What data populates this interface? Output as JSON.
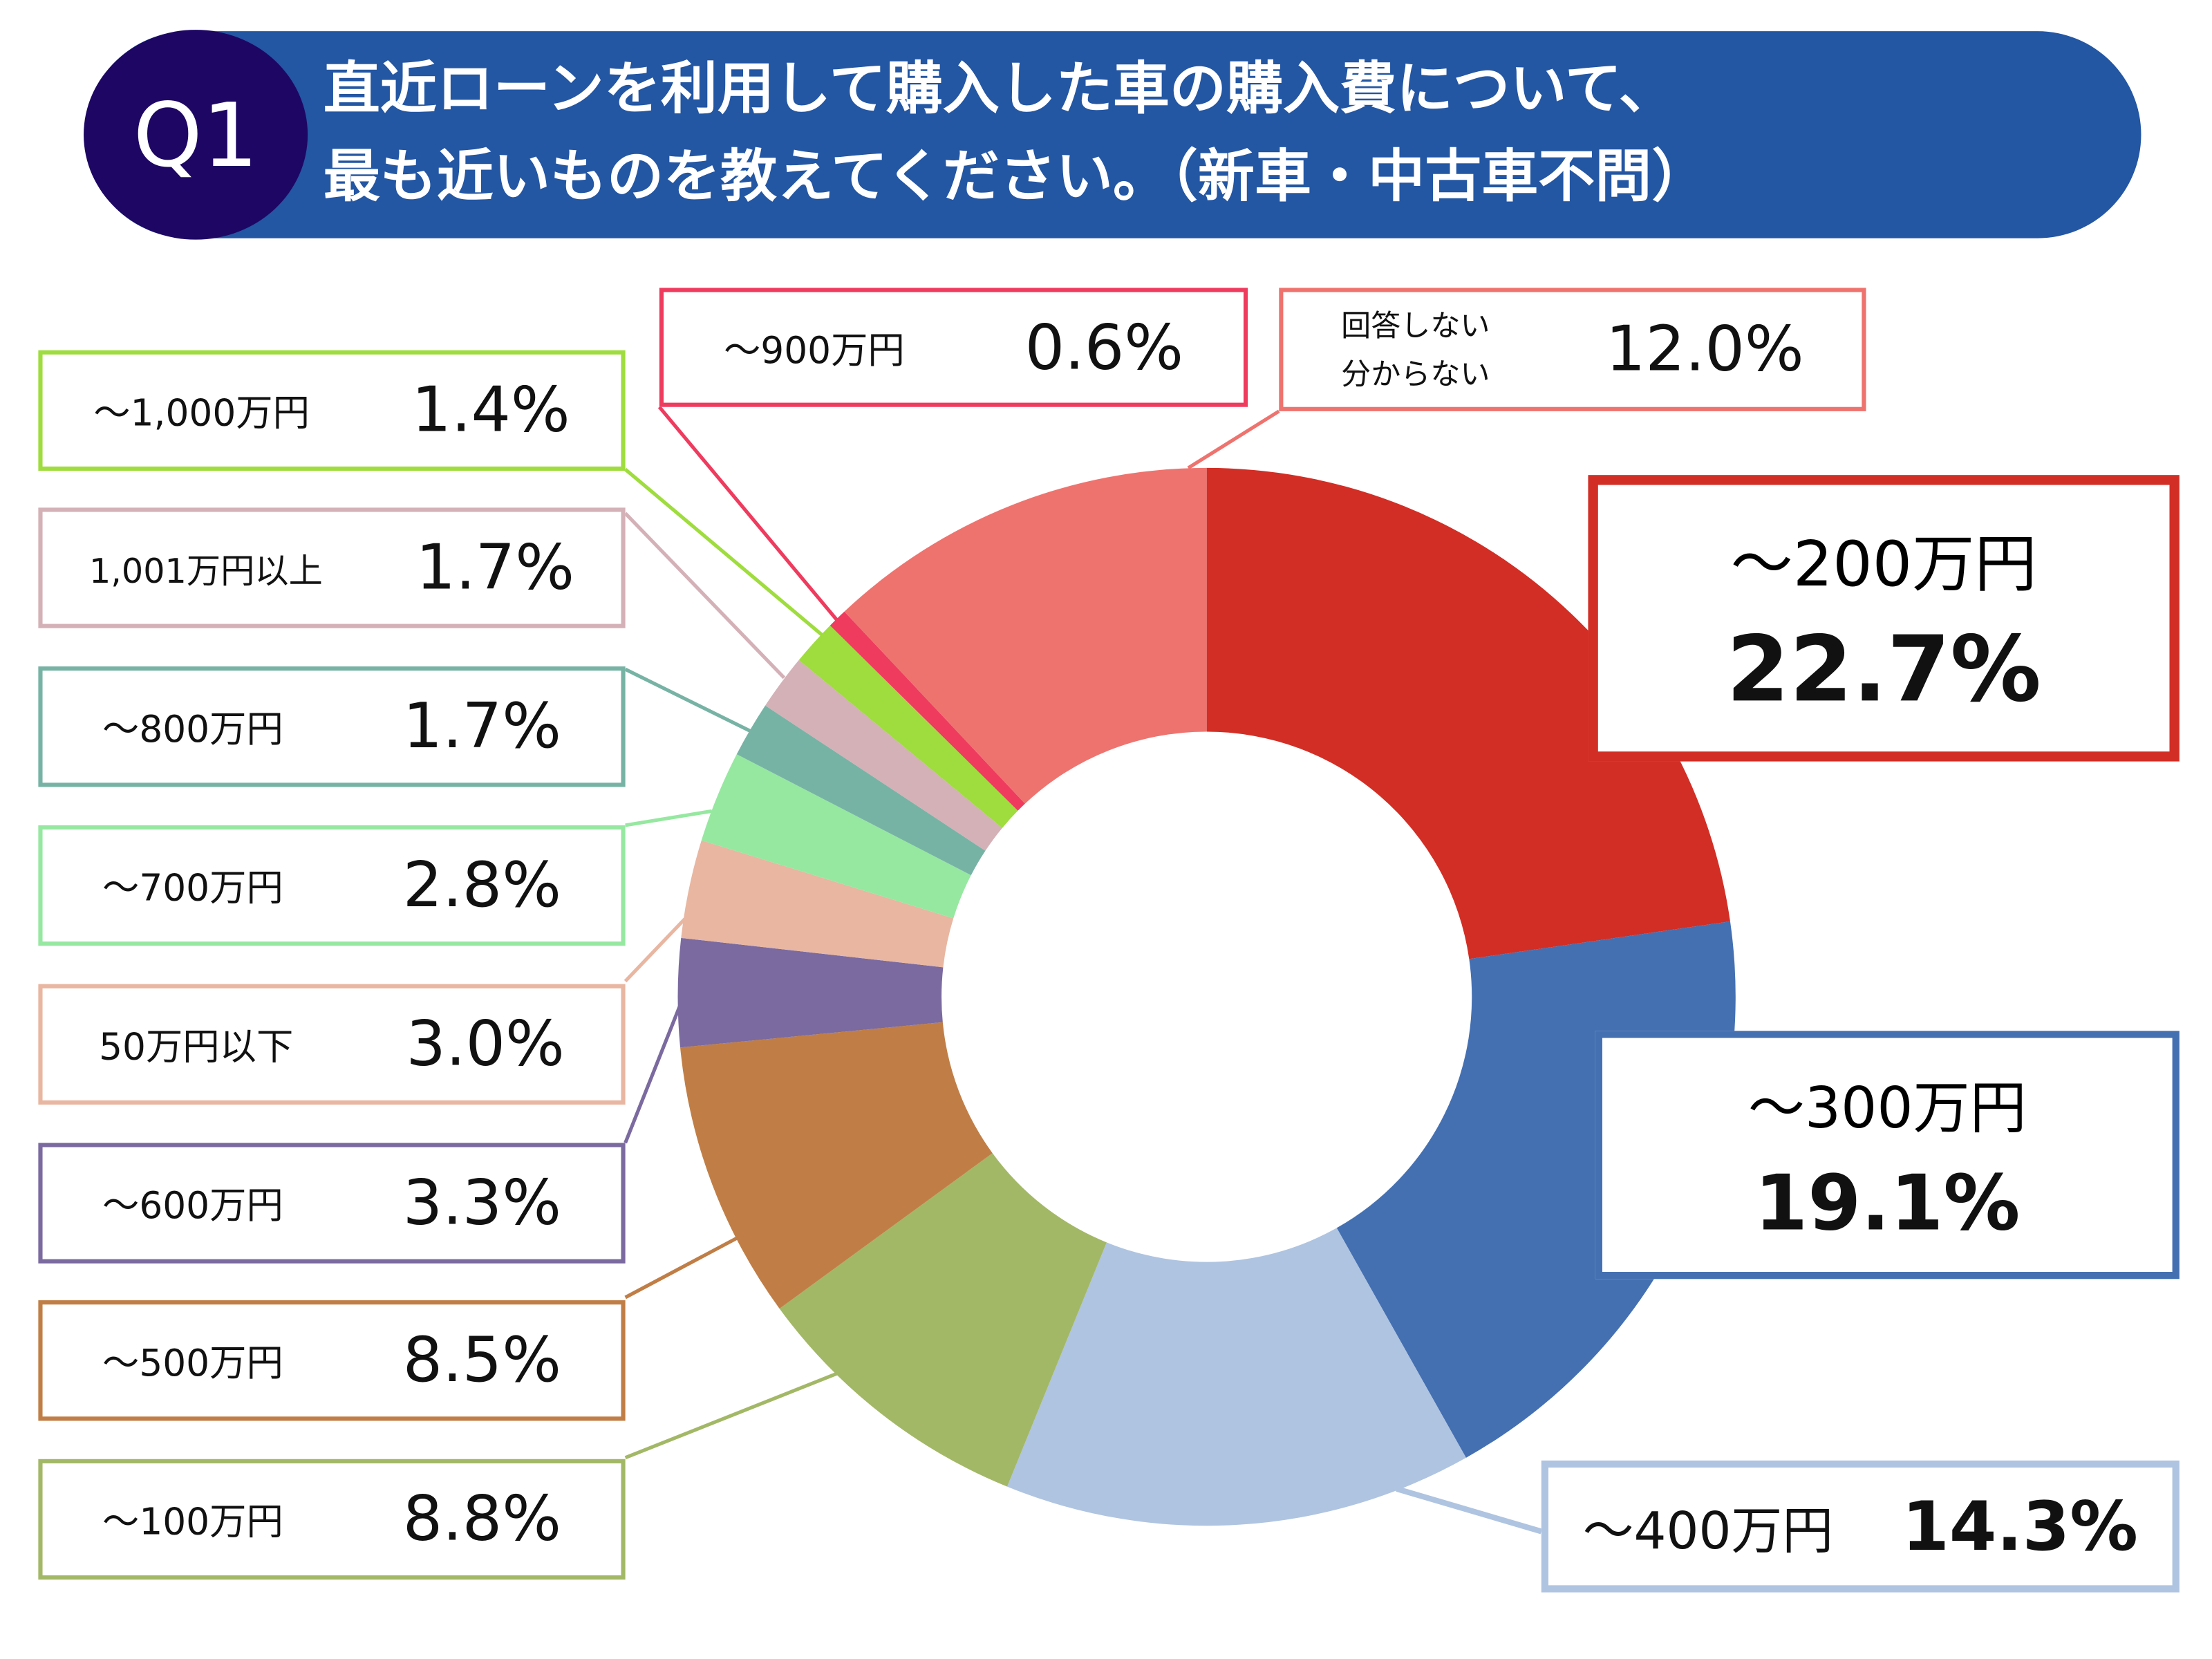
{
  "header": {
    "badge": "Q1",
    "title_line1": "直近ローンを利用して購入した車の購入費について、",
    "title_line2": "最も近いものを教えてください。（新車・中古車不問）"
  },
  "chart_data": {
    "type": "pie",
    "donut": true,
    "start": "top",
    "direction": "clockwise",
    "slices": [
      {
        "label": "～200万円",
        "value": 22.7,
        "display": "22.7%",
        "color": "#D22E25"
      },
      {
        "label": "～300万円",
        "value": 19.1,
        "display": "19.1%",
        "color": "#4470B2"
      },
      {
        "label": "～400万円",
        "value": 14.3,
        "display": "14.3%",
        "color": "#AFC4E0"
      },
      {
        "label": "～100万円",
        "value": 8.8,
        "display": "8.8%",
        "color": "#A3B866"
      },
      {
        "label": "～500万円",
        "value": 8.5,
        "display": "8.5%",
        "color": "#C07E46"
      },
      {
        "label": "～600万円",
        "value": 3.3,
        "display": "3.3%",
        "color": "#7B6A9F"
      },
      {
        "label": "50万円以下",
        "value": 3.0,
        "display": "3.0%",
        "color": "#E8B6A1"
      },
      {
        "label": "～700万円",
        "value": 2.8,
        "display": "2.8%",
        "color": "#96E8A0"
      },
      {
        "label": "～800万円",
        "value": 1.7,
        "display": "1.7%",
        "color": "#77B3A5"
      },
      {
        "label": "1,001万円以上",
        "value": 1.7,
        "display": "1.7%",
        "color": "#D4B1B7"
      },
      {
        "label": "～1,000万円",
        "value": 1.4,
        "display": "1.4%",
        "color": "#9FDC3E"
      },
      {
        "label": "～900万円",
        "value": 0.6,
        "display": "0.6%",
        "color": "#EE3B5E"
      },
      {
        "label": "回答しない 分からない",
        "label_line1": "回答しない",
        "label_line2": "分からない",
        "value": 12.0,
        "display": "12.0%",
        "color": "#EE736E"
      }
    ]
  }
}
